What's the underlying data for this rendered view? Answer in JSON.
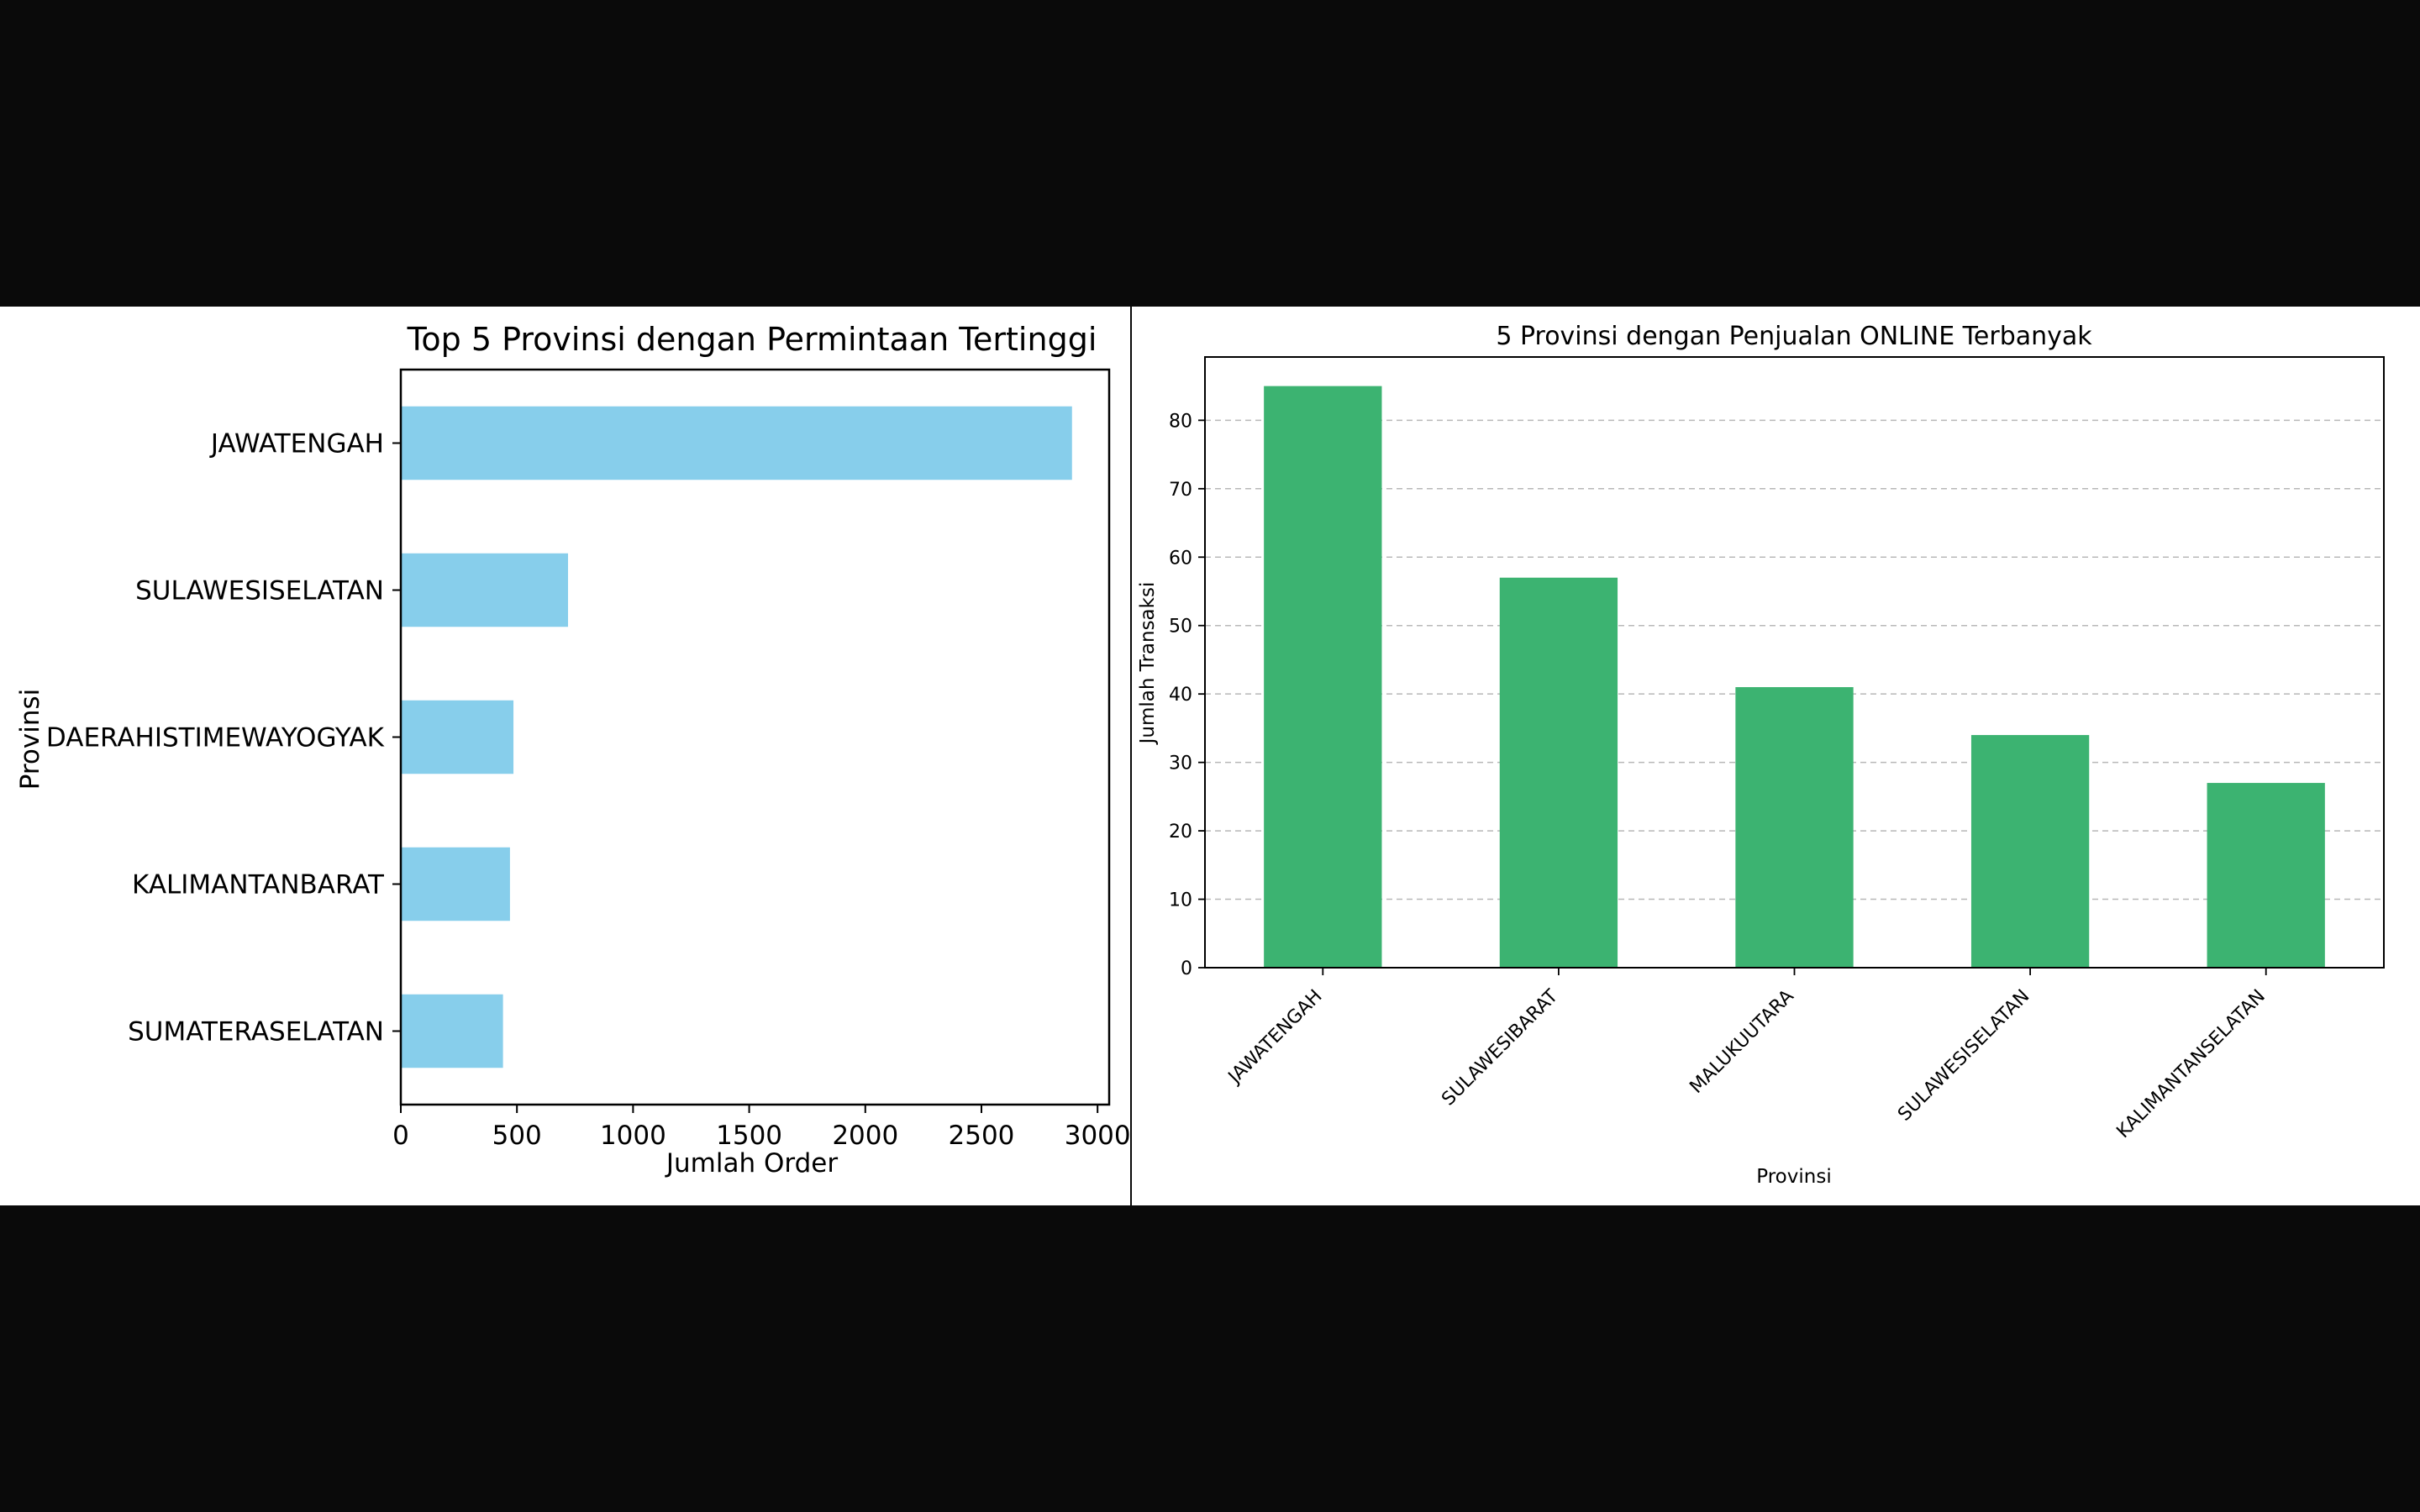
{
  "chart_data": [
    {
      "type": "bar",
      "orientation": "horizontal",
      "title": "Top 5 Provinsi dengan Permintaan Tertinggi",
      "xlabel": "Jumlah Order",
      "ylabel": "Provinsi",
      "categories": [
        "JAWATENGAH",
        "SULAWESISELATAN",
        "DAERAHISTIMEWAYOGYAK",
        "KALIMANTANBARAT",
        "SUMATERASELATAN"
      ],
      "values": [
        2890,
        720,
        485,
        470,
        440
      ],
      "xlim": [
        0,
        3050
      ],
      "xticks": [
        "0",
        "500",
        "1000",
        "1500",
        "2000",
        "2500",
        "3000"
      ],
      "grid": false,
      "bar_color": "#87ceeb"
    },
    {
      "type": "bar",
      "orientation": "vertical",
      "title": "5 Provinsi dengan Penjualan ONLINE Terbanyak",
      "xlabel": "Provinsi",
      "ylabel": "Jumlah Transaksi",
      "categories": [
        "JAWATENGAH",
        "SULAWESIBARAT",
        "MALUKUUTARA",
        "SULAWESISELATAN",
        "KALIMANTANSELATAN"
      ],
      "values": [
        85,
        57,
        41,
        34,
        27
      ],
      "ylim": [
        0,
        89.25
      ],
      "yticks": [
        "0",
        "10",
        "20",
        "30",
        "40",
        "50",
        "60",
        "70",
        "80"
      ],
      "grid": true,
      "grid_axis": "y",
      "bar_color": "#3cb371"
    }
  ]
}
